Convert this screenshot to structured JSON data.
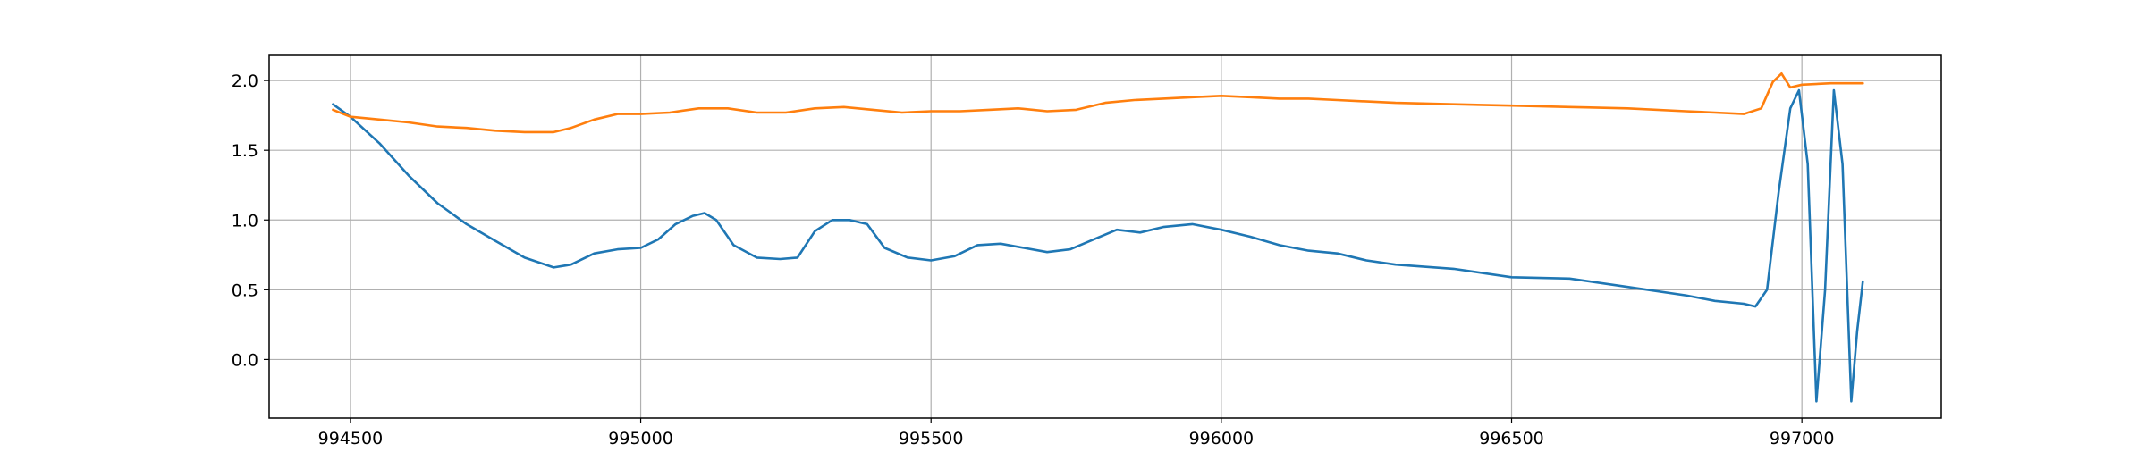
{
  "chart_data": {
    "type": "line",
    "title": "",
    "xlabel": "",
    "ylabel": "",
    "xlim": [
      994360,
      997240
    ],
    "ylim": [
      -0.42,
      2.18
    ],
    "xticks": [
      994500,
      995000,
      995500,
      996000,
      996500,
      997000
    ],
    "yticks": [
      0.0,
      0.5,
      1.0,
      1.5,
      2.0
    ],
    "xtick_labels": [
      "994500",
      "995000",
      "995500",
      "996000",
      "996500",
      "997000"
    ],
    "ytick_labels": [
      "0.0",
      "0.5",
      "1.0",
      "1.5",
      "2.0"
    ],
    "grid": true,
    "legend": "none",
    "series": [
      {
        "color": "#1f77b4",
        "x": [
          994470,
          994500,
          994550,
          994600,
          994650,
          994700,
          994750,
          994800,
          994850,
          994880,
          994920,
          994960,
          995000,
          995030,
          995060,
          995090,
          995110,
          995130,
          995160,
          995200,
          995240,
          995270,
          995300,
          995330,
          995360,
          995390,
          995420,
          995460,
          995500,
          995540,
          995580,
          995620,
          995660,
          995700,
          995740,
          995780,
          995820,
          995860,
          995900,
          995950,
          996000,
          996050,
          996100,
          996150,
          996200,
          996250,
          996300,
          996400,
          996500,
          996600,
          996700,
          996800,
          996850,
          996900,
          996920,
          996940,
          996960,
          996980,
          996995,
          997010,
          997025,
          997040,
          997055,
          997070,
          997085,
          997095,
          997105
        ],
        "y": [
          1.83,
          1.74,
          1.55,
          1.32,
          1.12,
          0.97,
          0.85,
          0.73,
          0.66,
          0.68,
          0.76,
          0.79,
          0.8,
          0.86,
          0.97,
          1.03,
          1.05,
          1.0,
          0.82,
          0.73,
          0.72,
          0.73,
          0.92,
          1.0,
          1.0,
          0.97,
          0.8,
          0.73,
          0.71,
          0.74,
          0.82,
          0.83,
          0.8,
          0.77,
          0.79,
          0.86,
          0.93,
          0.91,
          0.95,
          0.97,
          0.93,
          0.88,
          0.82,
          0.78,
          0.76,
          0.71,
          0.68,
          0.65,
          0.59,
          0.58,
          0.52,
          0.46,
          0.42,
          0.4,
          0.38,
          0.5,
          1.2,
          1.8,
          1.93,
          1.4,
          -0.3,
          0.5,
          1.93,
          1.4,
          -0.3,
          0.2,
          0.56
        ]
      },
      {
        "color": "#ff7f0e",
        "x": [
          994470,
          994500,
          994550,
          994600,
          994650,
          994700,
          994750,
          994800,
          994850,
          994880,
          994920,
          994960,
          995000,
          995050,
          995100,
          995150,
          995200,
          995250,
          995300,
          995350,
          995400,
          995450,
          995500,
          995550,
          995600,
          995650,
          995700,
          995750,
          995800,
          995850,
          995900,
          995950,
          996000,
          996050,
          996100,
          996150,
          996200,
          996300,
          996400,
          996500,
          996600,
          996700,
          996800,
          996850,
          996900,
          996930,
          996950,
          996965,
          996980,
          997000,
          997050,
          997105
        ],
        "y": [
          1.79,
          1.74,
          1.72,
          1.7,
          1.67,
          1.66,
          1.64,
          1.63,
          1.63,
          1.66,
          1.72,
          1.76,
          1.76,
          1.77,
          1.8,
          1.8,
          1.77,
          1.77,
          1.8,
          1.81,
          1.79,
          1.77,
          1.78,
          1.78,
          1.79,
          1.8,
          1.78,
          1.79,
          1.84,
          1.86,
          1.87,
          1.88,
          1.89,
          1.88,
          1.87,
          1.87,
          1.86,
          1.84,
          1.83,
          1.82,
          1.81,
          1.8,
          1.78,
          1.77,
          1.76,
          1.8,
          1.99,
          2.05,
          1.95,
          1.97,
          1.98,
          1.98
        ]
      }
    ]
  }
}
